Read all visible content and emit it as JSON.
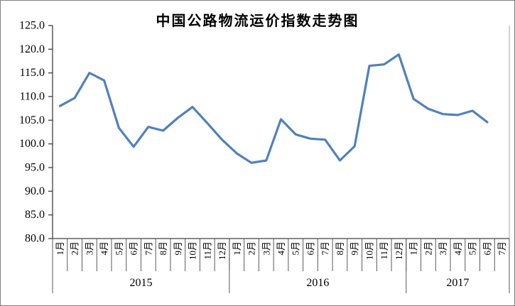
{
  "chart_data": {
    "type": "line",
    "title": "中国公路物流运价指数走势图",
    "series_color": "#4F81BD",
    "axis_color": "#404040",
    "divider_color": "#595959",
    "plot_right_border_color": "#a6a6a6",
    "legend": "none",
    "grid": "off",
    "y_axis": {
      "min": 80.0,
      "max": 125.0,
      "step": 5.0,
      "tick_labels": [
        "125.0",
        "120.0",
        "115.0",
        "110.0",
        "105.0",
        "100.0",
        "95.0",
        "90.0",
        "85.0",
        "80.0"
      ]
    },
    "x_axis": {
      "month_labels": [
        "1月",
        "2月",
        "3月",
        "4月",
        "5月",
        "6月",
        "7月",
        "8月",
        "9月",
        "10月",
        "11月",
        "12月",
        "1月",
        "2月",
        "3月",
        "4月",
        "5月",
        "6月",
        "7月",
        "8月",
        "9月",
        "10月",
        "11月",
        "12月",
        "1月",
        "2月",
        "3月",
        "4月",
        "5月",
        "6月",
        "7月"
      ],
      "year_groups": [
        {
          "label": "2015",
          "months": 12
        },
        {
          "label": "2016",
          "months": 12
        },
        {
          "label": "2017",
          "months": 7
        }
      ]
    },
    "values": [
      108.0,
      109.7,
      115.0,
      113.4,
      103.4,
      99.4,
      103.6,
      102.8,
      105.5,
      107.8,
      104.4,
      100.9,
      98.0,
      96.0,
      96.5,
      105.2,
      102.0,
      101.1,
      100.9,
      96.5,
      99.5,
      116.5,
      116.8,
      118.9,
      109.5,
      107.4,
      106.3,
      106.1,
      107.0,
      104.6,
      null
    ]
  }
}
